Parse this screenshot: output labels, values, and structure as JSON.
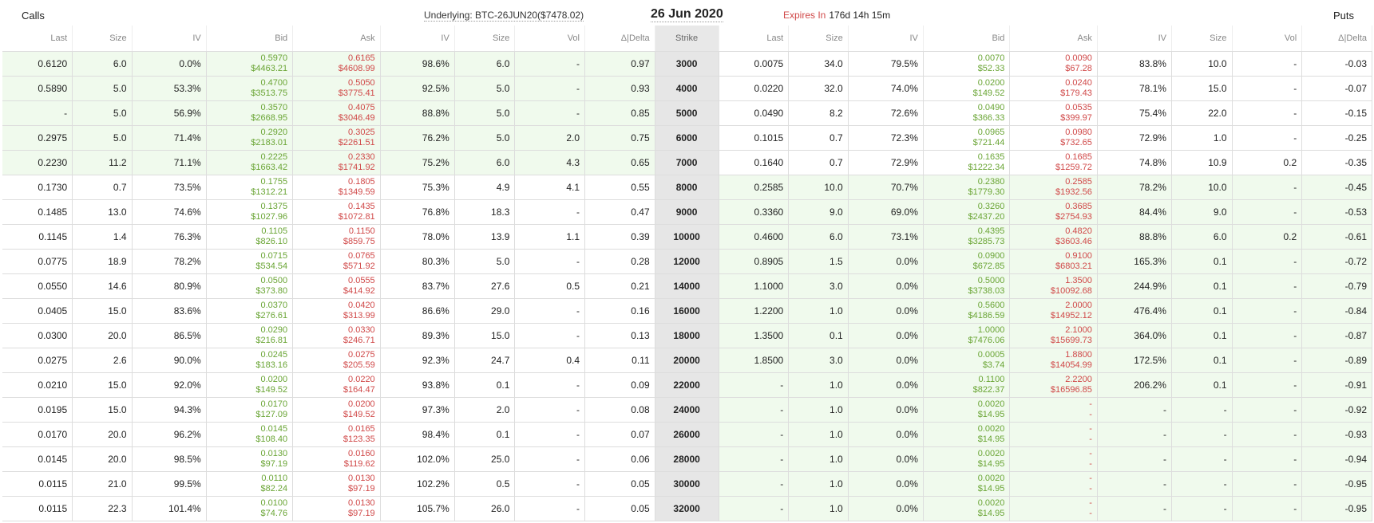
{
  "header": {
    "calls_label": "Calls",
    "puts_label": "Puts",
    "underlying": "Underlying: BTC-26JUN20($7478.02)",
    "expiry_date": "26 Jun 2020",
    "expires_in_label": "Expires In",
    "expires_in_value": "176d 14h 15m"
  },
  "columns": [
    "Last",
    "Size",
    "IV",
    "Bid",
    "Ask",
    "IV",
    "Size",
    "Vol",
    "Δ|Delta",
    "Strike",
    "Last",
    "Size",
    "IV",
    "Bid",
    "Ask",
    "IV",
    "Size",
    "Vol",
    "Δ|Delta"
  ],
  "rows": [
    {
      "strike": "3000",
      "call_itm": true,
      "put_itm": false,
      "c": {
        "last": "0.6120",
        "size": "6.0",
        "iv_bid": "0.0%",
        "bid": "0.5970",
        "bid_usd": "$4463.21",
        "ask": "0.6165",
        "ask_usd": "$4608.99",
        "iv_ask": "98.6%",
        "size2": "6.0",
        "vol": "-",
        "delta": "0.97"
      },
      "p": {
        "last": "0.0075",
        "size": "34.0",
        "iv_bid": "79.5%",
        "bid": "0.0070",
        "bid_usd": "$52.33",
        "ask": "0.0090",
        "ask_usd": "$67.28",
        "iv_ask": "83.8%",
        "size2": "10.0",
        "vol": "-",
        "delta": "-0.03"
      }
    },
    {
      "strike": "4000",
      "call_itm": true,
      "put_itm": false,
      "c": {
        "last": "0.5890",
        "size": "5.0",
        "iv_bid": "53.3%",
        "bid": "0.4700",
        "bid_usd": "$3513.75",
        "ask": "0.5050",
        "ask_usd": "$3775.41",
        "iv_ask": "92.5%",
        "size2": "5.0",
        "vol": "-",
        "delta": "0.93"
      },
      "p": {
        "last": "0.0220",
        "size": "32.0",
        "iv_bid": "74.0%",
        "bid": "0.0200",
        "bid_usd": "$149.52",
        "ask": "0.0240",
        "ask_usd": "$179.43",
        "iv_ask": "78.1%",
        "size2": "15.0",
        "vol": "-",
        "delta": "-0.07"
      }
    },
    {
      "strike": "5000",
      "call_itm": true,
      "put_itm": false,
      "c": {
        "last": "-",
        "size": "5.0",
        "iv_bid": "56.9%",
        "bid": "0.3570",
        "bid_usd": "$2668.95",
        "ask": "0.4075",
        "ask_usd": "$3046.49",
        "iv_ask": "88.8%",
        "size2": "5.0",
        "vol": "-",
        "delta": "0.85"
      },
      "p": {
        "last": "0.0490",
        "size": "8.2",
        "iv_bid": "72.6%",
        "bid": "0.0490",
        "bid_usd": "$366.33",
        "ask": "0.0535",
        "ask_usd": "$399.97",
        "iv_ask": "75.4%",
        "size2": "22.0",
        "vol": "-",
        "delta": "-0.15"
      }
    },
    {
      "strike": "6000",
      "call_itm": true,
      "put_itm": false,
      "c": {
        "last": "0.2975",
        "size": "5.0",
        "iv_bid": "71.4%",
        "bid": "0.2920",
        "bid_usd": "$2183.01",
        "ask": "0.3025",
        "ask_usd": "$2261.51",
        "iv_ask": "76.2%",
        "size2": "5.0",
        "vol": "2.0",
        "delta": "0.75"
      },
      "p": {
        "last": "0.1015",
        "size": "0.7",
        "iv_bid": "72.3%",
        "bid": "0.0965",
        "bid_usd": "$721.44",
        "ask": "0.0980",
        "ask_usd": "$732.65",
        "iv_ask": "72.9%",
        "size2": "1.0",
        "vol": "-",
        "delta": "-0.25"
      }
    },
    {
      "strike": "7000",
      "call_itm": true,
      "put_itm": false,
      "c": {
        "last": "0.2230",
        "size": "11.2",
        "iv_bid": "71.1%",
        "bid": "0.2225",
        "bid_usd": "$1663.42",
        "ask": "0.2330",
        "ask_usd": "$1741.92",
        "iv_ask": "75.2%",
        "size2": "6.0",
        "vol": "4.3",
        "delta": "0.65"
      },
      "p": {
        "last": "0.1640",
        "size": "0.7",
        "iv_bid": "72.9%",
        "bid": "0.1635",
        "bid_usd": "$1222.34",
        "ask": "0.1685",
        "ask_usd": "$1259.72",
        "iv_ask": "74.8%",
        "size2": "10.9",
        "vol": "0.2",
        "delta": "-0.35"
      }
    },
    {
      "strike": "8000",
      "call_itm": false,
      "put_itm": true,
      "c": {
        "last": "0.1730",
        "size": "0.7",
        "iv_bid": "73.5%",
        "bid": "0.1755",
        "bid_usd": "$1312.21",
        "ask": "0.1805",
        "ask_usd": "$1349.59",
        "iv_ask": "75.3%",
        "size2": "4.9",
        "vol": "4.1",
        "delta": "0.55"
      },
      "p": {
        "last": "0.2585",
        "size": "10.0",
        "iv_bid": "70.7%",
        "bid": "0.2380",
        "bid_usd": "$1779.30",
        "ask": "0.2585",
        "ask_usd": "$1932.56",
        "iv_ask": "78.2%",
        "size2": "10.0",
        "vol": "-",
        "delta": "-0.45"
      }
    },
    {
      "strike": "9000",
      "call_itm": false,
      "put_itm": true,
      "c": {
        "last": "0.1485",
        "size": "13.0",
        "iv_bid": "74.6%",
        "bid": "0.1375",
        "bid_usd": "$1027.96",
        "ask": "0.1435",
        "ask_usd": "$1072.81",
        "iv_ask": "76.8%",
        "size2": "18.3",
        "vol": "-",
        "delta": "0.47"
      },
      "p": {
        "last": "0.3360",
        "size": "9.0",
        "iv_bid": "69.0%",
        "bid": "0.3260",
        "bid_usd": "$2437.20",
        "ask": "0.3685",
        "ask_usd": "$2754.93",
        "iv_ask": "84.4%",
        "size2": "9.0",
        "vol": "-",
        "delta": "-0.53"
      }
    },
    {
      "strike": "10000",
      "call_itm": false,
      "put_itm": true,
      "c": {
        "last": "0.1145",
        "size": "1.4",
        "iv_bid": "76.3%",
        "bid": "0.1105",
        "bid_usd": "$826.10",
        "ask": "0.1150",
        "ask_usd": "$859.75",
        "iv_ask": "78.0%",
        "size2": "13.9",
        "vol": "1.1",
        "delta": "0.39"
      },
      "p": {
        "last": "0.4600",
        "size": "6.0",
        "iv_bid": "73.1%",
        "bid": "0.4395",
        "bid_usd": "$3285.73",
        "ask": "0.4820",
        "ask_usd": "$3603.46",
        "iv_ask": "88.8%",
        "size2": "6.0",
        "vol": "0.2",
        "delta": "-0.61"
      }
    },
    {
      "strike": "12000",
      "call_itm": false,
      "put_itm": true,
      "c": {
        "last": "0.0775",
        "size": "18.9",
        "iv_bid": "78.2%",
        "bid": "0.0715",
        "bid_usd": "$534.54",
        "ask": "0.0765",
        "ask_usd": "$571.92",
        "iv_ask": "80.3%",
        "size2": "5.0",
        "vol": "-",
        "delta": "0.28"
      },
      "p": {
        "last": "0.8905",
        "size": "1.5",
        "iv_bid": "0.0%",
        "bid": "0.0900",
        "bid_usd": "$672.85",
        "ask": "0.9100",
        "ask_usd": "$6803.21",
        "iv_ask": "165.3%",
        "size2": "0.1",
        "vol": "-",
        "delta": "-0.72"
      }
    },
    {
      "strike": "14000",
      "call_itm": false,
      "put_itm": true,
      "c": {
        "last": "0.0550",
        "size": "14.6",
        "iv_bid": "80.9%",
        "bid": "0.0500",
        "bid_usd": "$373.80",
        "ask": "0.0555",
        "ask_usd": "$414.92",
        "iv_ask": "83.7%",
        "size2": "27.6",
        "vol": "0.5",
        "delta": "0.21"
      },
      "p": {
        "last": "1.1000",
        "size": "3.0",
        "iv_bid": "0.0%",
        "bid": "0.5000",
        "bid_usd": "$3738.03",
        "ask": "1.3500",
        "ask_usd": "$10092.68",
        "iv_ask": "244.9%",
        "size2": "0.1",
        "vol": "-",
        "delta": "-0.79"
      }
    },
    {
      "strike": "16000",
      "call_itm": false,
      "put_itm": true,
      "c": {
        "last": "0.0405",
        "size": "15.0",
        "iv_bid": "83.6%",
        "bid": "0.0370",
        "bid_usd": "$276.61",
        "ask": "0.0420",
        "ask_usd": "$313.99",
        "iv_ask": "86.6%",
        "size2": "29.0",
        "vol": "-",
        "delta": "0.16"
      },
      "p": {
        "last": "1.2200",
        "size": "1.0",
        "iv_bid": "0.0%",
        "bid": "0.5600",
        "bid_usd": "$4186.59",
        "ask": "2.0000",
        "ask_usd": "$14952.12",
        "iv_ask": "476.4%",
        "size2": "0.1",
        "vol": "-",
        "delta": "-0.84"
      }
    },
    {
      "strike": "18000",
      "call_itm": false,
      "put_itm": true,
      "c": {
        "last": "0.0300",
        "size": "20.0",
        "iv_bid": "86.5%",
        "bid": "0.0290",
        "bid_usd": "$216.81",
        "ask": "0.0330",
        "ask_usd": "$246.71",
        "iv_ask": "89.3%",
        "size2": "15.0",
        "vol": "-",
        "delta": "0.13"
      },
      "p": {
        "last": "1.3500",
        "size": "0.1",
        "iv_bid": "0.0%",
        "bid": "1.0000",
        "bid_usd": "$7476.06",
        "ask": "2.1000",
        "ask_usd": "$15699.73",
        "iv_ask": "364.0%",
        "size2": "0.1",
        "vol": "-",
        "delta": "-0.87"
      }
    },
    {
      "strike": "20000",
      "call_itm": false,
      "put_itm": true,
      "c": {
        "last": "0.0275",
        "size": "2.6",
        "iv_bid": "90.0%",
        "bid": "0.0245",
        "bid_usd": "$183.16",
        "ask": "0.0275",
        "ask_usd": "$205.59",
        "iv_ask": "92.3%",
        "size2": "24.7",
        "vol": "0.4",
        "delta": "0.11"
      },
      "p": {
        "last": "1.8500",
        "size": "3.0",
        "iv_bid": "0.0%",
        "bid": "0.0005",
        "bid_usd": "$3.74",
        "ask": "1.8800",
        "ask_usd": "$14054.99",
        "iv_ask": "172.5%",
        "size2": "0.1",
        "vol": "-",
        "delta": "-0.89"
      }
    },
    {
      "strike": "22000",
      "call_itm": false,
      "put_itm": true,
      "c": {
        "last": "0.0210",
        "size": "15.0",
        "iv_bid": "92.0%",
        "bid": "0.0200",
        "bid_usd": "$149.52",
        "ask": "0.0220",
        "ask_usd": "$164.47",
        "iv_ask": "93.8%",
        "size2": "0.1",
        "vol": "-",
        "delta": "0.09"
      },
      "p": {
        "last": "-",
        "size": "1.0",
        "iv_bid": "0.0%",
        "bid": "0.1100",
        "bid_usd": "$822.37",
        "ask": "2.2200",
        "ask_usd": "$16596.85",
        "iv_ask": "206.2%",
        "size2": "0.1",
        "vol": "-",
        "delta": "-0.91"
      }
    },
    {
      "strike": "24000",
      "call_itm": false,
      "put_itm": true,
      "c": {
        "last": "0.0195",
        "size": "15.0",
        "iv_bid": "94.3%",
        "bid": "0.0170",
        "bid_usd": "$127.09",
        "ask": "0.0200",
        "ask_usd": "$149.52",
        "iv_ask": "97.3%",
        "size2": "2.0",
        "vol": "-",
        "delta": "0.08"
      },
      "p": {
        "last": "-",
        "size": "1.0",
        "iv_bid": "0.0%",
        "bid": "0.0020",
        "bid_usd": "$14.95",
        "ask": "-",
        "ask_usd": "-",
        "iv_ask": "-",
        "size2": "-",
        "vol": "-",
        "delta": "-0.92"
      }
    },
    {
      "strike": "26000",
      "call_itm": false,
      "put_itm": true,
      "c": {
        "last": "0.0170",
        "size": "20.0",
        "iv_bid": "96.2%",
        "bid": "0.0145",
        "bid_usd": "$108.40",
        "ask": "0.0165",
        "ask_usd": "$123.35",
        "iv_ask": "98.4%",
        "size2": "0.1",
        "vol": "-",
        "delta": "0.07"
      },
      "p": {
        "last": "-",
        "size": "1.0",
        "iv_bid": "0.0%",
        "bid": "0.0020",
        "bid_usd": "$14.95",
        "ask": "-",
        "ask_usd": "-",
        "iv_ask": "-",
        "size2": "-",
        "vol": "-",
        "delta": "-0.93"
      }
    },
    {
      "strike": "28000",
      "call_itm": false,
      "put_itm": true,
      "c": {
        "last": "0.0145",
        "size": "20.0",
        "iv_bid": "98.5%",
        "bid": "0.0130",
        "bid_usd": "$97.19",
        "ask": "0.0160",
        "ask_usd": "$119.62",
        "iv_ask": "102.0%",
        "size2": "25.0",
        "vol": "-",
        "delta": "0.06"
      },
      "p": {
        "last": "-",
        "size": "1.0",
        "iv_bid": "0.0%",
        "bid": "0.0020",
        "bid_usd": "$14.95",
        "ask": "-",
        "ask_usd": "-",
        "iv_ask": "-",
        "size2": "-",
        "vol": "-",
        "delta": "-0.94"
      }
    },
    {
      "strike": "30000",
      "call_itm": false,
      "put_itm": true,
      "c": {
        "last": "0.0115",
        "size": "21.0",
        "iv_bid": "99.5%",
        "bid": "0.0110",
        "bid_usd": "$82.24",
        "ask": "0.0130",
        "ask_usd": "$97.19",
        "iv_ask": "102.2%",
        "size2": "0.5",
        "vol": "-",
        "delta": "0.05"
      },
      "p": {
        "last": "-",
        "size": "1.0",
        "iv_bid": "0.0%",
        "bid": "0.0020",
        "bid_usd": "$14.95",
        "ask": "-",
        "ask_usd": "-",
        "iv_ask": "-",
        "size2": "-",
        "vol": "-",
        "delta": "-0.95"
      }
    },
    {
      "strike": "32000",
      "call_itm": false,
      "put_itm": true,
      "c": {
        "last": "0.0115",
        "size": "22.3",
        "iv_bid": "101.4%",
        "bid": "0.0100",
        "bid_usd": "$74.76",
        "ask": "0.0130",
        "ask_usd": "$97.19",
        "iv_ask": "105.7%",
        "size2": "26.0",
        "vol": "-",
        "delta": "0.05"
      },
      "p": {
        "last": "-",
        "size": "1.0",
        "iv_bid": "0.0%",
        "bid": "0.0020",
        "bid_usd": "$14.95",
        "ask": "-",
        "ask_usd": "-",
        "iv_ask": "-",
        "size2": "-",
        "vol": "-",
        "delta": "-0.95"
      }
    }
  ]
}
